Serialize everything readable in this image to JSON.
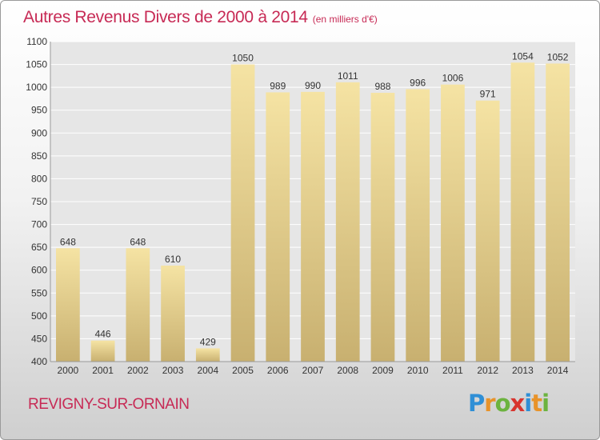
{
  "title": "Autres Revenus Divers de 2000 à 2014",
  "subtitle": "(en milliers d'€)",
  "location": "REVIGNY-SUR-ORNAIN",
  "logo": {
    "letters": [
      "P",
      "r",
      "o",
      "x",
      "i",
      "t",
      "i"
    ],
    "colors": [
      "#2f8fd6",
      "#e8932a",
      "#6cb33f",
      "#d8342e",
      "#2f8fd6",
      "#e8932a",
      "#6cb33f"
    ]
  },
  "colors": {
    "bar_light": "#f5e3a3",
    "bar_dark": "#c8b070",
    "grid": "#ffffff",
    "axis_text": "#333333"
  },
  "chart_data": {
    "type": "bar",
    "categories": [
      "2000",
      "2001",
      "2002",
      "2003",
      "2004",
      "2005",
      "2006",
      "2007",
      "2008",
      "2009",
      "2010",
      "2011",
      "2012",
      "2013",
      "2014"
    ],
    "values": [
      648,
      446,
      648,
      610,
      429,
      1050,
      989,
      990,
      1011,
      988,
      996,
      1006,
      971,
      1054,
      1052
    ],
    "ylim": [
      400,
      1100
    ],
    "yticks": [
      400,
      450,
      500,
      550,
      600,
      650,
      700,
      750,
      800,
      850,
      900,
      950,
      1000,
      1050,
      1100
    ],
    "grid": true,
    "xlabel": "",
    "ylabel": ""
  }
}
